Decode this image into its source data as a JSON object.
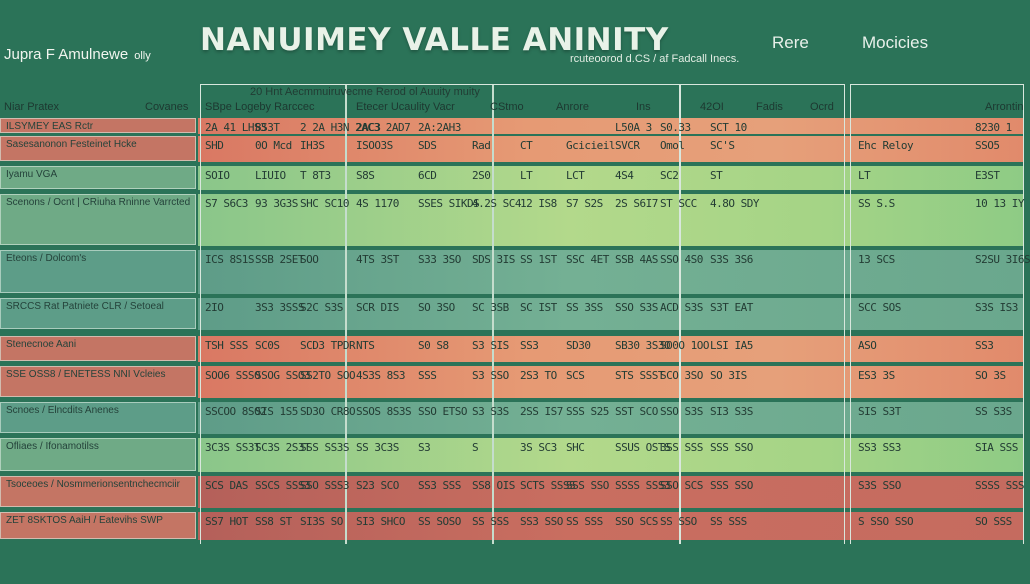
{
  "header": {
    "title": "NANUIMEY VALLE ANINITY",
    "subtitle": "rcuteoorod d.CS / af Fadcall Inecs.",
    "brand": "Jupra F Amulnewe",
    "brand_small": "olly",
    "nav": [
      "Rere",
      "Mocicies"
    ]
  },
  "table_header": {
    "top_line": "20 Hnt Aecmmuiruvecme Rerod ol Auuity muity",
    "sidebar_left": "Niar Pratex",
    "sidebar_right": "Covanes",
    "columns": [
      "SBpe Logeby Rarccec",
      "Etecer Ucaulity Vacr",
      "CStmo",
      "Anrore",
      "Ins",
      "42OI",
      "Fadis",
      "Ocrd",
      "Arrontin"
    ]
  },
  "sidebar": [
    "ILSYMEY EAS Rctr",
    "Sasesanonon Festeinet Hcke",
    "Iyamu VGA",
    "Scenons / Ocnt | CRiuha Rninne Varrcted",
    "Eteons / Dolcom's",
    "SRCCS Rat Patniete CLR / Setoeal",
    "Stenecnoe Aani",
    "SSE OSS8 / ENETESS  NNI Vcleies",
    "Scnoes / Elncdits Anenes",
    "Ofliaes / Ifonamotilss",
    "Tsoceoes / Nosmmerionsentnchecmciir",
    "ZET 8SKTOS AaiH / Eatevihs SWP"
  ],
  "rows": [
    {
      "cells": [
        "2A 41  LHS3",
        "8S3T",
        "2 2A H3N  2AC3  2AD7",
        "2AC3",
        "2A:2AH3",
        "",
        "",
        "",
        "L50A  3",
        "S0.33",
        "SCT 10",
        "",
        "8230 1"
      ]
    },
    {
      "cells": [
        "SHD",
        "0O Mcd",
        "IH3S",
        "ISOO3S",
        "SDS",
        "Rad",
        "CT",
        "Gcicieil",
        "SVCR",
        "Omol",
        "SC'S",
        "Ehc  Reloy",
        "SSO5"
      ]
    },
    {
      "cells": [
        "SOIO",
        "LIUIO",
        "T 8T3",
        "S8S",
        "6CD",
        "2S0",
        "LT",
        "LCT",
        "4S4",
        "SC2",
        "ST",
        "LT",
        "E3ST"
      ]
    },
    {
      "cells": [
        "S7 S6C3",
        "93 3G3S",
        "SHC SC10",
        "4S 1170",
        "SSES SIKDS",
        "4.2S SC4",
        "12 IS8",
        "S7 S2S",
        "2S S6I7",
        "ST SCC",
        "4.8O SDY",
        "SS S.S",
        "10 13 IY"
      ]
    },
    {
      "cells": [
        "ICS 8S1S",
        "SSB 2SET",
        "SOO",
        "4TS 3ST",
        "S33 3SO",
        "SDS 3IS",
        "SS 1ST",
        "SSC 4ET",
        "SSB 4AS",
        "SSO 4S0",
        "S3S 3S6",
        "13 SCS",
        "S2SU 3I6S"
      ]
    },
    {
      "cells": [
        "2IO",
        "3S3 3SSS",
        "S2C S3S",
        "SCR DIS",
        "SO 3SO",
        "SC 3SB",
        "SC IST",
        "SS 3SS",
        "SSO S3S",
        "ACD S3S",
        "S3T EAT",
        "SCC SOS",
        "S3S IS3"
      ]
    },
    {
      "cells": [
        "TSH SSS",
        "SC0S",
        "SCD3 TPDR",
        "NTS",
        "S0 S8",
        "S3 SIS",
        "SS3",
        "SD30",
        "SB30 3S30",
        "SO0O 1OO",
        "LSI IA5",
        "ASO",
        "SS3"
      ]
    },
    {
      "cells": [
        "SOO6 SSS0",
        "SSOG SSO3",
        "SS2TO SOO",
        "4S3S 8S3",
        "SSS",
        "S3 SSO",
        "2S3 TO",
        "SCS",
        "STS SSST",
        "SCO 3SO",
        "SO 3IS",
        "ES3 3S",
        "SO 3S"
      ]
    },
    {
      "cells": [
        "SSCOO 8S02",
        "SIS 1S5",
        "SD3O CR8O",
        "SSOS 8S3S",
        "SSO ETSO",
        "S3 S3S",
        "2SS IS7",
        "SSS S25",
        "SST SCO",
        "SSO S3S",
        "SI3 S3S",
        "SIS S3T",
        "SS S3S"
      ]
    },
    {
      "cells": [
        "3C3S SS3T",
        "SC3S 2S3T",
        "SSS SS3S",
        "SS 3C3S",
        "S3",
        "S",
        "3S SC3",
        "SHC",
        "SSUS OSTS",
        "3SS SSS",
        "SSS SSO",
        "SS3 SS3",
        "SIA SSS"
      ]
    },
    {
      "cells": [
        "SCS DAS",
        "SSCS SSS3",
        "SSO SSS3",
        "S23 SCO",
        "SS3 SSS",
        "SS8 OIS",
        "SCTS SSSS",
        "SSS SSO",
        "SSSS SSS3",
        "SSO SCS",
        "SSS SSO",
        "S3S SSO",
        "SSSS SSS"
      ]
    },
    {
      "cells": [
        "SS7 HOT",
        "SS8 ST",
        "SI3S SO",
        "SI3 SHCO",
        "SS SOSO",
        "SS SSS",
        "SS3 SSO",
        "SS SSS",
        "SSO SCS",
        "SS SSO",
        "SS SSS",
        "S SSO SSO",
        "SO SSS"
      ]
    }
  ],
  "colors": {
    "background": "#2b7358",
    "band_red": "#e0745b",
    "band_green": "#8fcf7f",
    "band_teal": "#5ea58c"
  }
}
